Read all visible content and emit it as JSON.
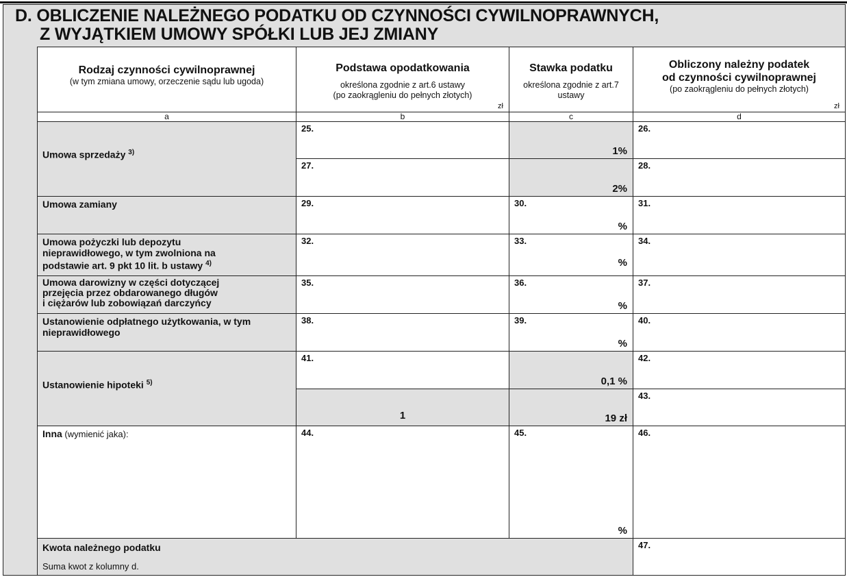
{
  "section": {
    "title_line1": "D. OBLICZENIE NALEŻNEGO PODATKU OD CZYNNOŚCI CYWILNOPRAWNYCH,",
    "title_line2": "Z WYJĄTKIEM UMOWY SPÓŁKI LUB JEJ ZMIANY"
  },
  "headers": {
    "a": {
      "main": "Rodzaj czynności cywilnoprawnej",
      "sub": "(w tym zmiana umowy, orzeczenie sądu lub ugoda)",
      "letter": "a"
    },
    "b": {
      "main": "Podstawa opodatkowania",
      "sub1": "określona zgodnie z art.6 ustawy",
      "sub2": "(po zaokrągleniu do pełnych złotych)",
      "unit": "zł",
      "letter": "b"
    },
    "c": {
      "main": "Stawka podatku",
      "sub1": "określona zgodnie z art.7",
      "sub2": "ustawy",
      "letter": "c"
    },
    "d": {
      "main1": "Obliczony należny podatek",
      "main2": "od czynności cywilnoprawnej",
      "sub": "(po zaokrągleniu do pełnych złotych)",
      "unit": "zł",
      "letter": "d"
    }
  },
  "rows": {
    "sprzedazy": {
      "label": "Umowa sprzedaży",
      "footnote": "3)",
      "f25": "25.",
      "rate1": "1%",
      "f26": "26.",
      "f27": "27.",
      "rate2": "2%",
      "f28": "28."
    },
    "zamiany": {
      "label": "Umowa zamiany",
      "f29": "29.",
      "f30": "30.",
      "pct": "%",
      "f31": "31."
    },
    "pozyczki": {
      "label1": "Umowa pożyczki lub depozytu",
      "label2": "nieprawidłowego, w tym zwolniona na",
      "label3": "podstawie art. 9 pkt 10 lit. b ustawy",
      "footnote": "4)",
      "f32": "32.",
      "f33": "33.",
      "pct": "%",
      "f34": "34."
    },
    "darowizny": {
      "label1": "Umowa darowizny w części dotyczącej",
      "label2": "przejęcia przez obdarowanego długów",
      "label3": "i ciężarów lub zobowiązań darczyńcy",
      "f35": "35.",
      "f36": "36.",
      "pct": "%",
      "f37": "37."
    },
    "uzytkowania": {
      "label1": "Ustanowienie odpłatnego użytkowania, w tym",
      "label2": "nieprawidłowego",
      "f38": "38.",
      "f39": "39.",
      "pct": "%",
      "f40": "40."
    },
    "hipoteki": {
      "label": "Ustanowienie hipoteki",
      "footnote": "5)",
      "f41": "41.",
      "rate": "0,1 %",
      "f42": "42.",
      "base2": "1",
      "rate2": "19 zł",
      "f43": "43."
    },
    "inna": {
      "label_bold": "Inna",
      "label_rest": " (wymienić jaka):",
      "f44": "44.",
      "f45": "45.",
      "pct": "%",
      "f46": "46."
    },
    "kwota": {
      "label": "Kwota należnego podatku",
      "sub": "Suma kwot z kolumny d.",
      "f47": "47."
    }
  }
}
